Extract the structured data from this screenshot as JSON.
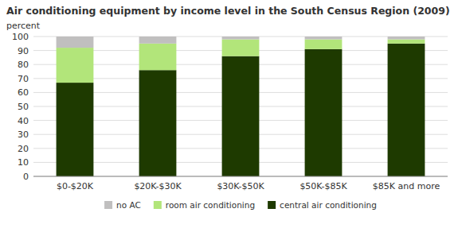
{
  "chart_data": {
    "type": "bar",
    "stacked": true,
    "title": "Air conditioning equipment by income level in the South Census Region (2009)",
    "ylabel": "percent",
    "categories": [
      "$0-$20K",
      "$20K-$30K",
      "$30K-$50K",
      "$50K-$85K",
      "$85K and more"
    ],
    "series": [
      {
        "name": "central air conditioning",
        "color": "#1e3a00",
        "values": [
          67,
          76,
          86,
          91,
          95
        ]
      },
      {
        "name": "room air conditioning",
        "color": "#b2e57a",
        "values": [
          25,
          19,
          12,
          7,
          3
        ]
      },
      {
        "name": "no AC",
        "color": "#c0bfbf",
        "values": [
          8,
          5,
          2,
          2,
          2
        ]
      }
    ],
    "ylim": [
      0,
      100
    ],
    "yticks": [
      0,
      10,
      20,
      30,
      40,
      50,
      60,
      70,
      80,
      90,
      100
    ],
    "grid": true,
    "legend": "bottom"
  }
}
